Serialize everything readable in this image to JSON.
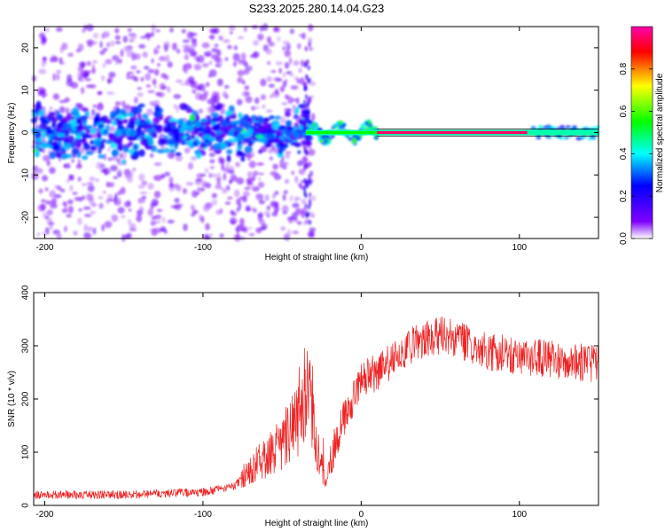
{
  "title": "S233.2025.280.14.04.G23",
  "chart_data": [
    {
      "type": "heatmap",
      "name": "spectrogram",
      "xlabel": "Height of straight line (km)",
      "ylabel": "Frequency (Hz)",
      "xlim": [
        -207,
        150
      ],
      "ylim": [
        -25,
        25
      ],
      "xticks": [
        -200,
        -100,
        0,
        100
      ],
      "yticks": [
        -20,
        -10,
        0,
        10,
        20
      ],
      "carrier_segments": [
        {
          "x0": -207,
          "x1": -35,
          "freq": 0,
          "amplitude": 0.3,
          "spread_hz": 3
        },
        {
          "x0": -35,
          "x1": 10,
          "freq": 0,
          "amplitude": 0.55,
          "spread_hz": 1.5
        },
        {
          "x0": 10,
          "x1": 105,
          "freq": 0,
          "amplitude": 0.95,
          "spread_hz": 0.5
        },
        {
          "x0": 105,
          "x1": 150,
          "freq": 0,
          "amplitude": 0.45,
          "spread_hz": 0.8
        }
      ],
      "colorbar": {
        "label": "Normalized spectral amplitude",
        "range": [
          0,
          1
        ],
        "ticks": [
          0.0,
          0.2,
          0.4,
          0.6,
          0.8
        ],
        "tick_labels": [
          "0.0",
          "0.2",
          "0.4",
          "0.6",
          "0.8"
        ],
        "colors": [
          "#ffffff",
          "#7f00ff",
          "#0000ff",
          "#00ffff",
          "#00ff00",
          "#ffff00",
          "#ff0000",
          "#ff00aa"
        ]
      }
    },
    {
      "type": "line",
      "name": "snr",
      "xlabel": "Height of straight line (km)",
      "ylabel": "SNR (10 * v/v)",
      "xlim": [
        -207,
        150
      ],
      "ylim": [
        0,
        400
      ],
      "xticks": [
        -200,
        -100,
        0,
        100
      ],
      "yticks": [
        0,
        100,
        200,
        300,
        400
      ],
      "color": "#ee2222",
      "series": [
        {
          "name": "SNR",
          "x": [
            -207,
            -150,
            -100,
            -80,
            -70,
            -60,
            -50,
            -40,
            -33,
            -28,
            -22,
            -17,
            -10,
            -5,
            0,
            10,
            20,
            30,
            40,
            50,
            60,
            70,
            80,
            90,
            100,
            110,
            120,
            130,
            140,
            150
          ],
          "y": [
            20,
            20,
            25,
            35,
            70,
            90,
            120,
            160,
            240,
            110,
            40,
            110,
            170,
            200,
            235,
            250,
            275,
            300,
            310,
            320,
            315,
            300,
            290,
            285,
            280,
            278,
            275,
            270,
            268,
            265
          ]
        }
      ]
    }
  ]
}
